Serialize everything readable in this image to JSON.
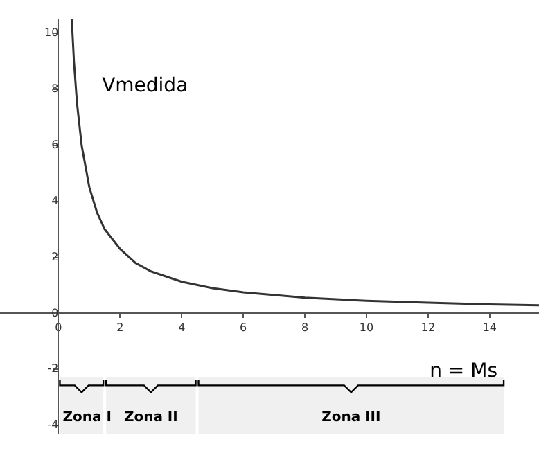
{
  "chart_data": {
    "type": "line",
    "xlabel": "n = Ms",
    "x": [
      0.43,
      0.5,
      0.6,
      0.75,
      1,
      1.25,
      1.5,
      2,
      2.5,
      3,
      4,
      5,
      6,
      8,
      10,
      12,
      14,
      15.6
    ],
    "series": [
      {
        "name": "Vmedida",
        "color": "#333333",
        "values": [
          10.5,
          9,
          7.5,
          6,
          4.5,
          3.6,
          3,
          2.3,
          1.8,
          1.5,
          1.13,
          0.9,
          0.75,
          0.56,
          0.45,
          0.38,
          0.32,
          0.29
        ]
      }
    ],
    "xlim": [
      -1.9,
      15.6
    ],
    "ylim": [
      -4.3,
      10.5
    ],
    "xticks": [
      0,
      2,
      4,
      6,
      8,
      10,
      12,
      14
    ],
    "yticks": [
      -4,
      -2,
      0,
      2,
      4,
      6,
      8,
      10
    ],
    "bands": [
      {
        "axis": "x",
        "from": 0,
        "to": 1.5,
        "label": "Zona I",
        "color": "#f0f0f0"
      },
      {
        "axis": "x",
        "from": 1.5,
        "to": 4.5,
        "label": "Zona II",
        "color": "#f0f0f0"
      },
      {
        "axis": "x",
        "from": 4.5,
        "to": 14.5,
        "label": "Zona III",
        "color": "#f0f0f0"
      }
    ],
    "grid": false,
    "legend": false,
    "marker": "none",
    "line_style": "solid"
  }
}
